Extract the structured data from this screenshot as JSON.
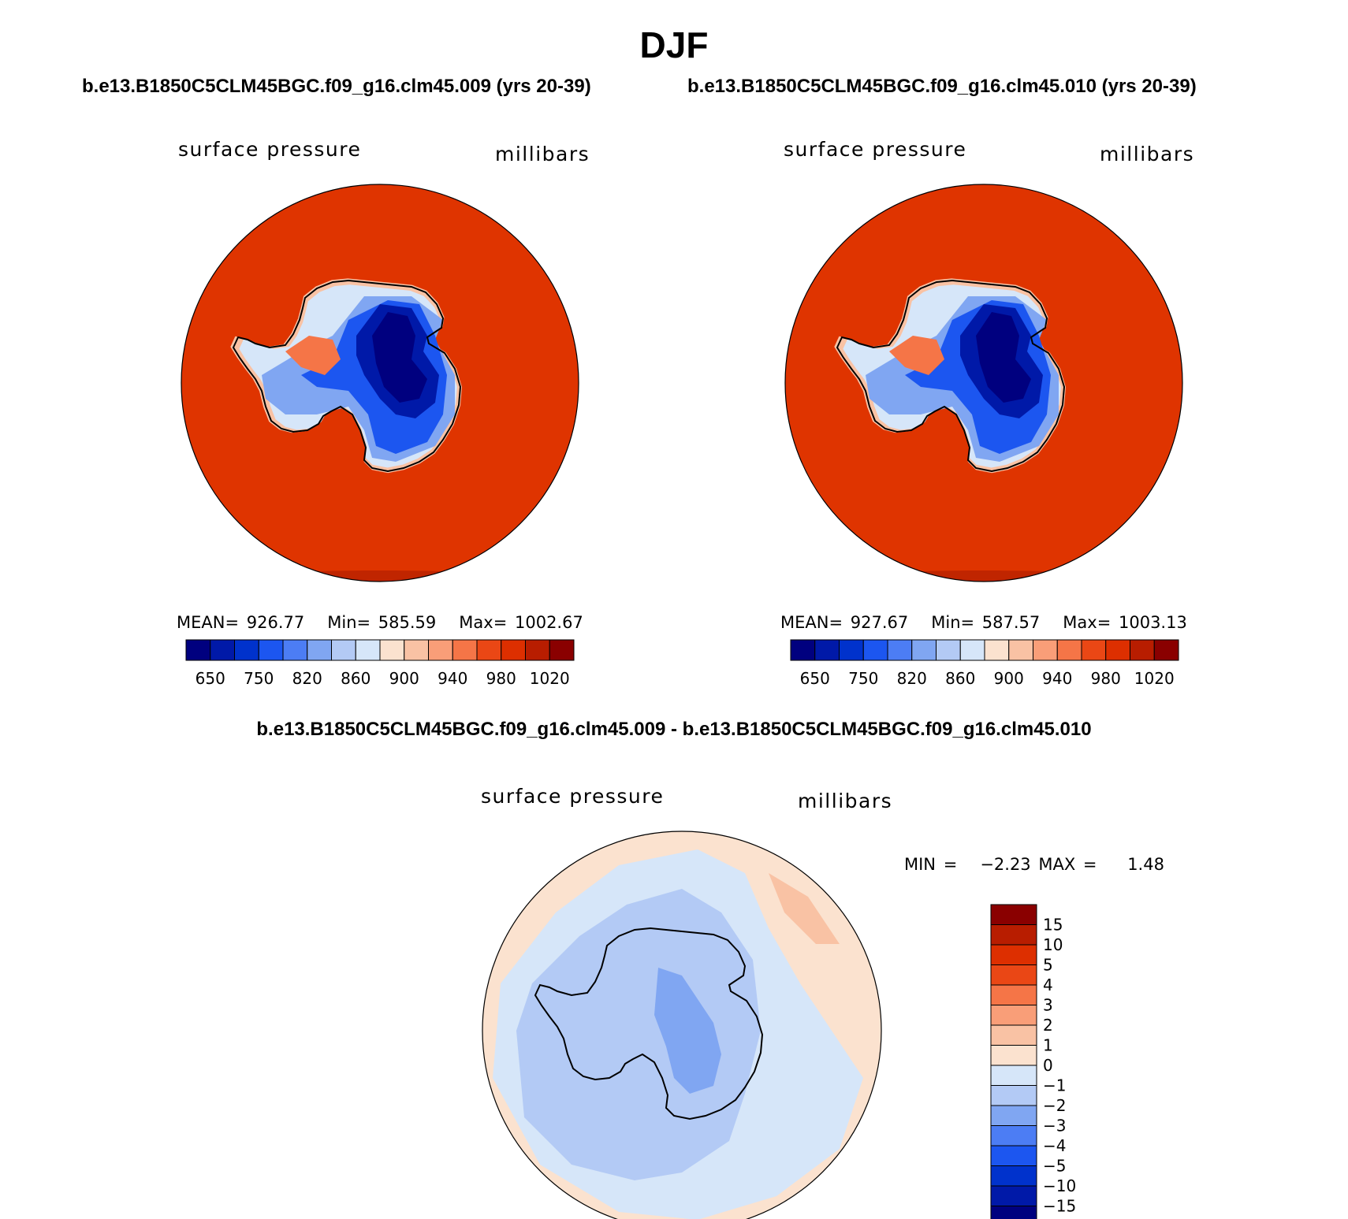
{
  "figure": {
    "title": "DJF",
    "panels": [
      {
        "case_title": "b.e13.B1850C5CLM45BGC.f09_g16.clm45.009 (yrs 20-39)",
        "variable": "surface pressure",
        "units": "millibars",
        "mean_text": "MEAN= 926.77",
        "min_text": "Min= 585.59",
        "max_text": "Max= 1002.67"
      },
      {
        "case_title": "b.e13.B1850C5CLM45BGC.f09_g16.clm45.010 (yrs 20-39)",
        "variable": "surface pressure",
        "units": "millibars",
        "mean_text": "MEAN= 927.67",
        "min_text": "Min= 587.57",
        "max_text": "Max= 1003.13"
      }
    ],
    "difference": {
      "title": "b.e13.B1850C5CLM45BGC.f09_g16.clm45.009 - b.e13.B1850C5CLM45BGC.f09_g16.clm45.010",
      "variable": "surface pressure",
      "units": "millibars",
      "minmax_text": "MIN =   −2.23 MAX =    1.48"
    }
  },
  "colorbar_abs": {
    "colors": [
      "#00007f",
      "#0019a8",
      "#0032cc",
      "#1c56f0",
      "#4c7df4",
      "#80a6f2",
      "#b3caf5",
      "#d6e6f9",
      "#fbe2cf",
      "#f9c2a4",
      "#f99e78",
      "#f57547",
      "#ea4715",
      "#dd2f00",
      "#b81d00",
      "#8a0000"
    ],
    "labels": [
      "650",
      "750",
      "820",
      "860",
      "900",
      "940",
      "980",
      "1020"
    ]
  },
  "colorbar_diff": {
    "colors": [
      "#00007f",
      "#0019a8",
      "#0032cc",
      "#1c56f0",
      "#4c7df4",
      "#80a6f2",
      "#b3caf5",
      "#d6e6f9",
      "#fbe2cf",
      "#f9c2a4",
      "#f99e78",
      "#f57547",
      "#ea4715",
      "#dd2f00",
      "#b81d00",
      "#8a0000"
    ],
    "labels": [
      "15",
      "10",
      "5",
      "4",
      "3",
      "2",
      "1",
      "0",
      "−1",
      "−2",
      "−3",
      "−4",
      "−5",
      "−10",
      "−15"
    ]
  },
  "map_colors": {
    "ocean_abs": "#df3400",
    "ocean_abs_edge": "#c02500",
    "diff_base": "#d6e6f9",
    "diff_neg1": "#b3caf5",
    "diff_neg2": "#80a6f2",
    "diff_pos": "#fbe2cf",
    "diff_pos2": "#f9c2a4"
  }
}
